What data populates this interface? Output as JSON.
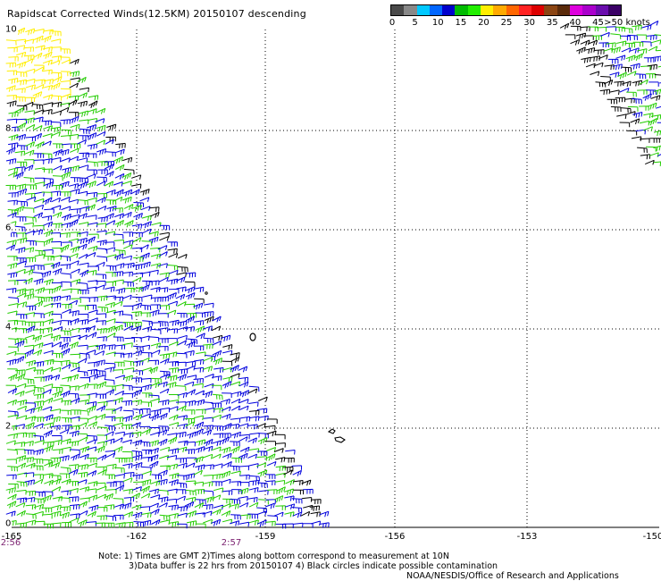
{
  "title": "Rapidscat Corrected Winds(12.5KM) 20150107 descending",
  "legend": {
    "colors": [
      "#4a4a4a",
      "#888888",
      "#00c8ff",
      "#0066ff",
      "#0000cc",
      "#00bb00",
      "#22ee00",
      "#ffee00",
      "#ffaa00",
      "#ff6600",
      "#ff2222",
      "#dd0000",
      "#8b4513",
      "#5a2a0a",
      "#dd00dd",
      "#aa00cc",
      "#6a0dad",
      "#3a0066"
    ],
    "ticks": [
      "0",
      "5",
      "10",
      "15",
      "20",
      "25",
      "30",
      "35",
      "40",
      "45"
    ],
    "unit_label": ">50 knots"
  },
  "map": {
    "lon_labels": [
      "-165",
      "-162",
      "-159",
      "-156",
      "-153",
      "-150"
    ],
    "lat_labels": [
      "10",
      "8",
      "6",
      "4",
      "2",
      "0"
    ],
    "time_labels": [
      "2:56",
      "2:57"
    ],
    "barb_colors": {
      "light": "#ffee00",
      "strong": "#22cc00",
      "moderate": "#0000dd",
      "weak": "#000000"
    }
  },
  "notes": {
    "line1": "Note: 1) Times are GMT 2)Times along bottom correspond to measurement at 10N",
    "line2": "3)Data buffer is 22 hrs from 20150107 4) Black circles indicate possible contamination"
  },
  "credit": "NOAA/NESDIS/Office of Research and Applications"
}
